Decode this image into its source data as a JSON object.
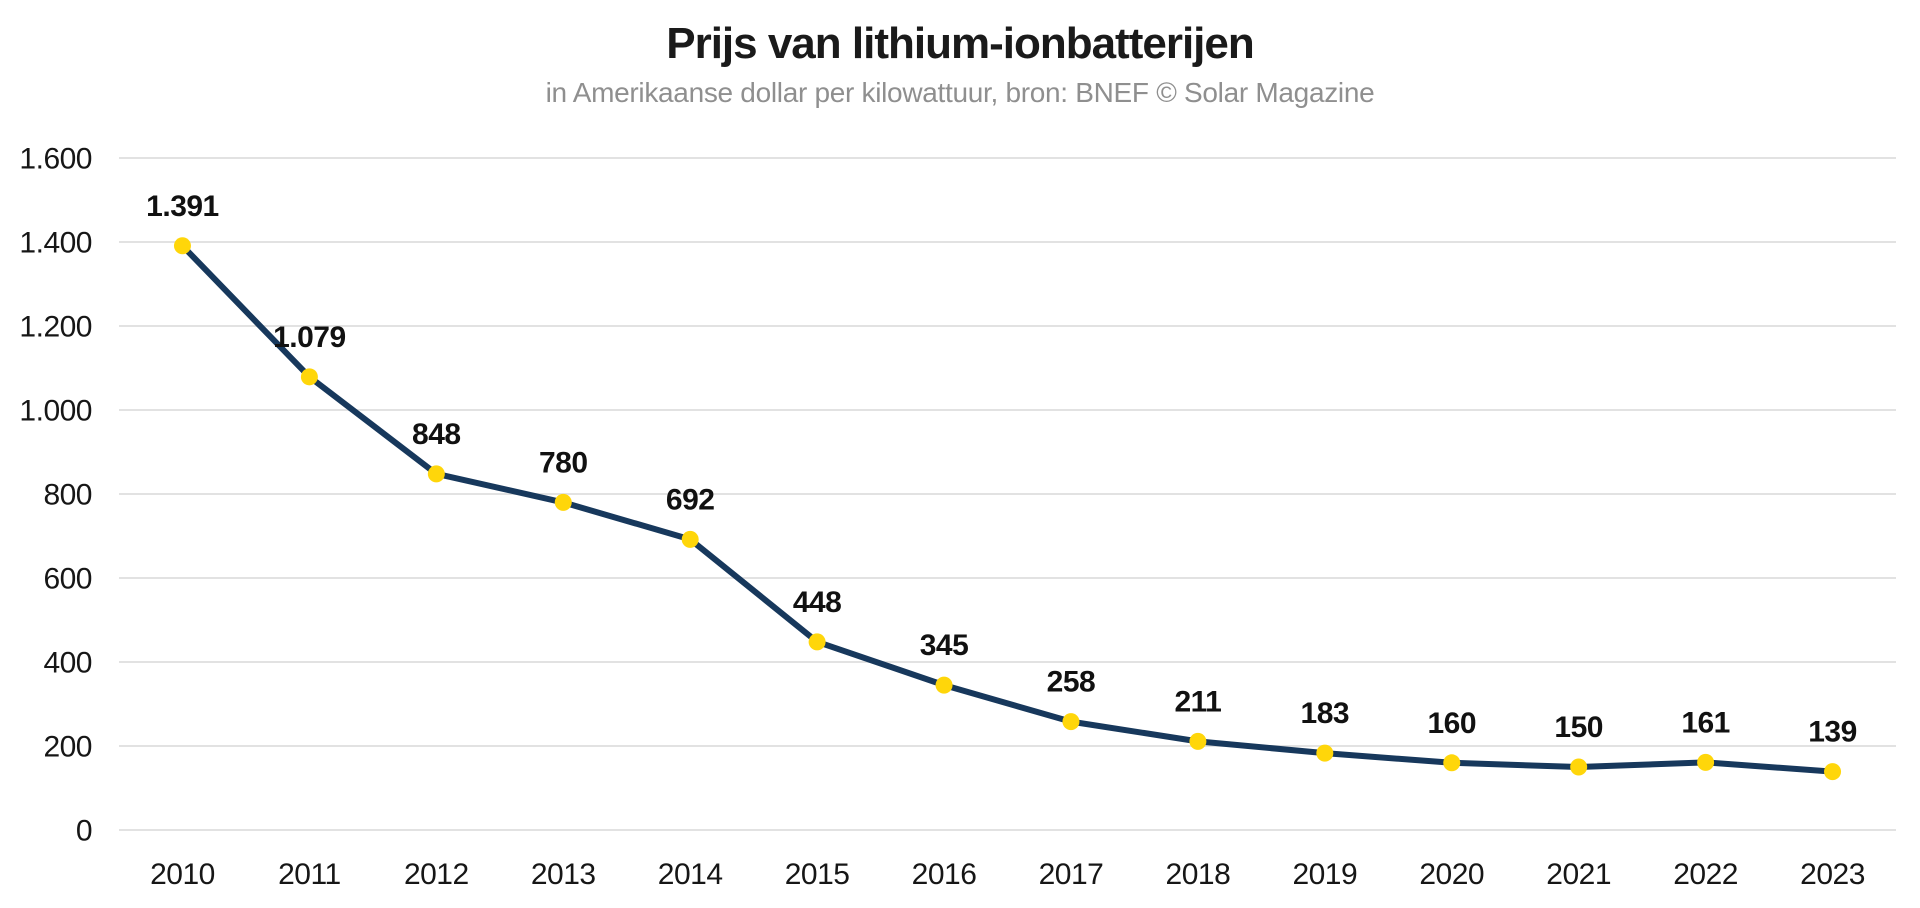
{
  "chart_data": {
    "type": "line",
    "title": "Prijs van lithium-ionbatterijen",
    "subtitle": "in Amerikaanse dollar per kilowattuur, bron: BNEF © Solar Magazine",
    "categories": [
      "2010",
      "2011",
      "2012",
      "2013",
      "2014",
      "2015",
      "2016",
      "2017",
      "2018",
      "2019",
      "2020",
      "2021",
      "2022",
      "2023"
    ],
    "values": [
      1391,
      1079,
      848,
      780,
      692,
      448,
      345,
      258,
      211,
      183,
      160,
      150,
      161,
      139
    ],
    "point_labels": [
      "1.391",
      "1.079",
      "848",
      "780",
      "692",
      "448",
      "345",
      "258",
      "211",
      "183",
      "160",
      "150",
      "161",
      "139"
    ],
    "xlabel": "",
    "ylabel": "",
    "ylim": [
      0,
      1600
    ],
    "y_ticks": {
      "values": [
        0,
        200,
        400,
        600,
        800,
        1000,
        1200,
        1400,
        1600
      ],
      "labels": [
        "0",
        "200",
        "400",
        "600",
        "800",
        "1.000",
        "1.200",
        "1.400",
        "1.600"
      ]
    },
    "grid": "horizontal",
    "legend": "none",
    "colors": {
      "line": "#17385c",
      "marker": "#ffd60a",
      "grid": "#e2e2e2",
      "title_text": "#1a1a1a",
      "subtitle_text": "#8f8f8f",
      "tick_text": "#161616",
      "background": "#ffffff"
    }
  }
}
